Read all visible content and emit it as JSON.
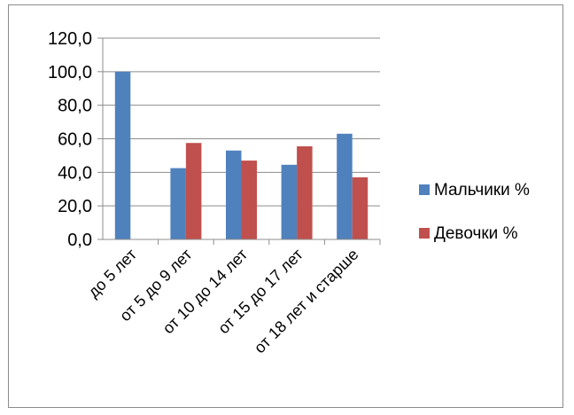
{
  "chart_data": {
    "type": "bar",
    "categories": [
      "до 5 лет",
      "от 5 до 9 лет",
      "от 10 до 14 лет",
      "от 15 до 17 лет",
      "от 18 лет и старше"
    ],
    "series": [
      {
        "name": "Мальчики %",
        "color": "#4f81bd",
        "values": [
          100.0,
          42.5,
          53.0,
          44.5,
          63.0
        ]
      },
      {
        "name": "Девочки %",
        "color": "#c0504d",
        "values": [
          0.0,
          57.5,
          47.0,
          55.5,
          37.0
        ]
      }
    ],
    "yticks": [
      "0,0",
      "20,0",
      "40,0",
      "60,0",
      "80,0",
      "100,0",
      "120,0"
    ],
    "ylim": [
      0,
      120
    ],
    "grid": true,
    "legend_position": "right"
  }
}
